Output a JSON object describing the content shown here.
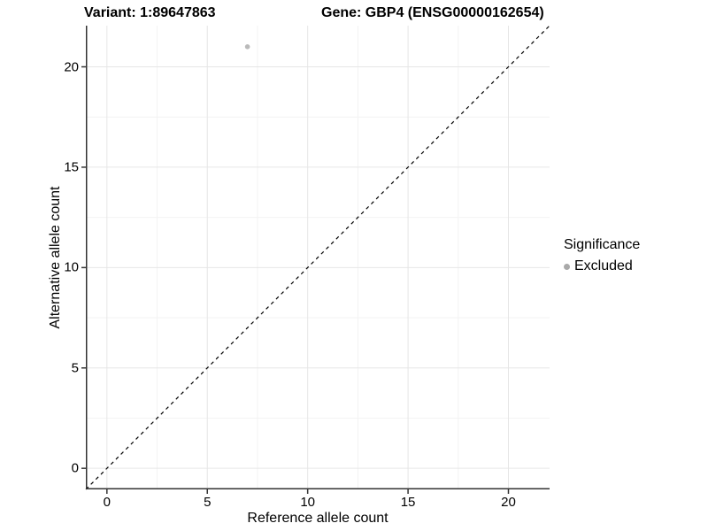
{
  "title": {
    "variant_label": "Variant: 1:89647863",
    "gene_label": "Gene: GBP4 (ENSG00000162654)"
  },
  "chart_data": {
    "type": "scatter",
    "title": "Variant: 1:89647863  |  Gene: GBP4 (ENSG00000162654)",
    "xlabel": "Reference allele count",
    "ylabel": "Alternative allele count",
    "xlim": [
      -1.05,
      22.05
    ],
    "ylim": [
      -1.05,
      22.05
    ],
    "x_ticks": [
      0,
      5,
      10,
      15,
      20
    ],
    "y_ticks": [
      0,
      5,
      10,
      15,
      20
    ],
    "x_minor_ticks": [
      2.5,
      7.5,
      12.5,
      17.5
    ],
    "y_minor_ticks": [
      2.5,
      7.5,
      12.5,
      17.5
    ],
    "grid": "major and minor gridlines on white panel",
    "points": [
      {
        "x": 7,
        "y": 21,
        "series": "Excluded"
      }
    ],
    "reference_line": {
      "kind": "identity y=x",
      "style": "dashed",
      "from": -1.05,
      "to": 22.05
    },
    "legend": {
      "title": "Significance",
      "position": "right",
      "entries": [
        {
          "label": "Excluded",
          "marker": "circle",
          "color": "#a9a9a9"
        }
      ]
    }
  },
  "colors": {
    "background": "#ffffff",
    "grid_major": "#e6e6e6",
    "grid_minor": "#f3f3f3",
    "axis_line": "#333333",
    "tick_mark": "#333333",
    "reference_line": "#000000",
    "point": "#bababa",
    "legend_marker": "#a9a9a9",
    "text": "#000000"
  }
}
